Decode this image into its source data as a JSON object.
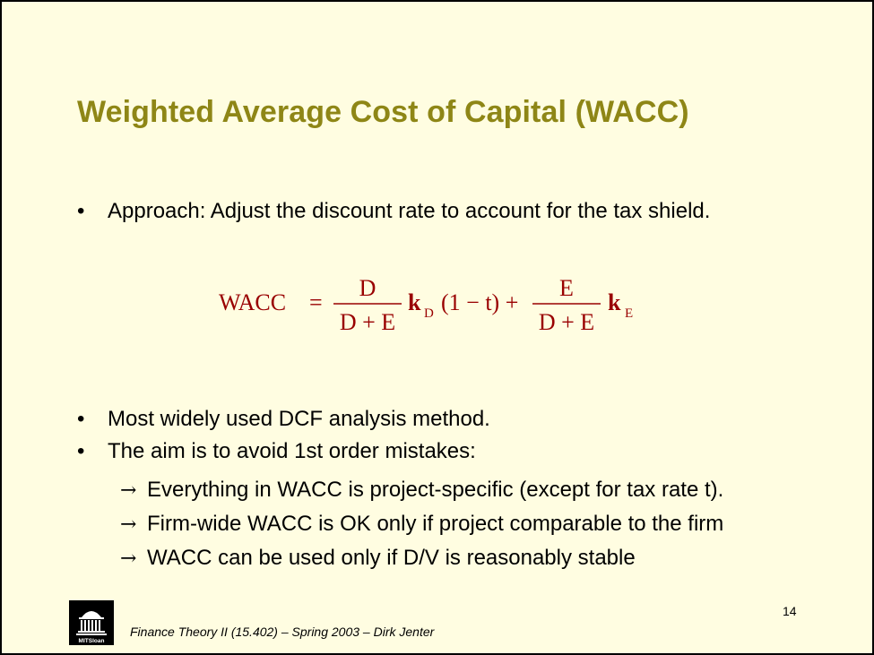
{
  "slide": {
    "title": "Weighted Average Cost of Capital (WACC)",
    "bullet_char": "•",
    "bullets": [
      "Approach: Adjust the discount rate to account for the tax shield.",
      "Most widely used DCF analysis method.",
      "The aim is to avoid 1st order mistakes:"
    ],
    "arrow_char": "→",
    "sub_points": [
      "Everything in WACC is project-specific (except for tax rate t).",
      "Firm-wide WACC is OK only if project comparable to the firm",
      "WACC can be used only if D/V is reasonably stable"
    ],
    "formula": {
      "lhs": "WACC",
      "equals": "=",
      "frac1_num": "D",
      "frac1_den": "D + E",
      "k": "k",
      "sub_d": "D",
      "tax_term": "(1 − t) +",
      "frac2_num": "E",
      "frac2_den": "D + E",
      "sub_e": "E"
    },
    "page_number": "14",
    "footer": "Finance Theory II (15.402) – Spring 2003 – Dirk Jenter",
    "logo_text": "MITSloan",
    "colors": {
      "background": "#fffde1",
      "title": "#8e8616",
      "formula": "#990000",
      "text": "#000000"
    }
  }
}
